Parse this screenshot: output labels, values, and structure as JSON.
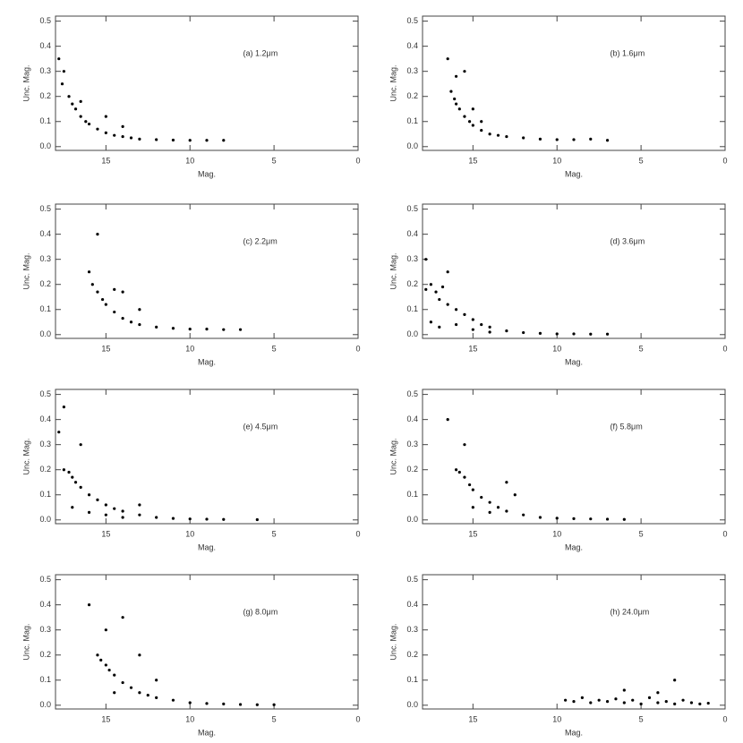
{
  "chart_data": [
    {
      "type": "scatter",
      "annotation": "(a) 1.2μm",
      "xlabel": "Mag.",
      "ylabel": "Unc. Mag.",
      "color": "#000000",
      "x": [
        17.5,
        17.2,
        17,
        16.8,
        16.5,
        16.2,
        16,
        15.5,
        15,
        14.5,
        14,
        13.5,
        13,
        12,
        11,
        10,
        9,
        8,
        17.8,
        17.6,
        16.5,
        15,
        14
      ],
      "y": [
        0.3,
        0.2,
        0.17,
        0.15,
        0.12,
        0.1,
        0.09,
        0.07,
        0.055,
        0.045,
        0.04,
        0.035,
        0.03,
        0.028,
        0.026,
        0.025,
        0.025,
        0.025,
        0.35,
        0.25,
        0.18,
        0.12,
        0.08
      ],
      "xlim": [
        18,
        0
      ],
      "ylim": [
        -0.015,
        0.52
      ],
      "xticks": [
        15,
        10,
        5,
        0
      ],
      "yticks": [
        {
          "value": 0,
          "label": "0.0"
        },
        0.1,
        0.2,
        0.3,
        0.4,
        0.5
      ]
    },
    {
      "type": "scatter",
      "annotation": "(b) 1.6μm",
      "xlabel": "Mag.",
      "ylabel": "Unc. Mag.",
      "color": "#000000",
      "x": [
        16.3,
        16.1,
        16,
        15.8,
        15.5,
        15.2,
        15,
        14.5,
        14,
        13.5,
        13,
        12,
        11,
        10,
        9,
        8,
        7,
        16.5,
        16,
        15,
        14.5,
        15.5
      ],
      "y": [
        0.22,
        0.19,
        0.17,
        0.15,
        0.12,
        0.1,
        0.085,
        0.065,
        0.05,
        0.045,
        0.04,
        0.035,
        0.03,
        0.028,
        0.028,
        0.03,
        0.025,
        0.35,
        0.28,
        0.15,
        0.1,
        0.3
      ],
      "xlim": [
        18,
        0
      ],
      "ylim": [
        -0.015,
        0.52
      ],
      "xticks": [
        15,
        10,
        5,
        0
      ],
      "yticks": [
        {
          "value": 0,
          "label": "0.0"
        },
        0.1,
        0.2,
        0.3,
        0.4,
        0.5
      ]
    },
    {
      "type": "scatter",
      "annotation": "(c) 2.2μm",
      "xlabel": "Mag.",
      "ylabel": "Unc. Mag.",
      "color": "#000000",
      "x": [
        16,
        15.8,
        15.5,
        15.2,
        15,
        14.5,
        14,
        13.5,
        13,
        12,
        11,
        10,
        9,
        8,
        7,
        15.5,
        14,
        13,
        14.5
      ],
      "y": [
        0.25,
        0.2,
        0.17,
        0.14,
        0.12,
        0.09,
        0.065,
        0.05,
        0.04,
        0.03,
        0.025,
        0.022,
        0.022,
        0.02,
        0.02,
        0.4,
        0.17,
        0.1,
        0.18
      ],
      "xlim": [
        18,
        0
      ],
      "ylim": [
        -0.015,
        0.52
      ],
      "xticks": [
        15,
        10,
        5,
        0
      ],
      "yticks": [
        {
          "value": 0,
          "label": "0.0"
        },
        0.1,
        0.2,
        0.3,
        0.4,
        0.5
      ]
    },
    {
      "type": "scatter",
      "annotation": "(d) 3.6μm",
      "xlabel": "Mag.",
      "ylabel": "Unc. Mag.",
      "color": "#000000",
      "x": [
        17.8,
        17.5,
        17.2,
        17,
        16.8,
        16.5,
        16,
        15.5,
        15,
        14.5,
        14,
        13,
        12,
        11,
        10,
        9,
        8,
        7,
        17.5,
        17,
        16,
        15,
        14,
        17.8,
        16.5
      ],
      "y": [
        0.18,
        0.2,
        0.17,
        0.14,
        0.19,
        0.12,
        0.1,
        0.08,
        0.06,
        0.04,
        0.03,
        0.015,
        0.008,
        0.005,
        0.003,
        0.003,
        0.002,
        0.002,
        0.05,
        0.03,
        0.04,
        0.02,
        0.01,
        0.3,
        0.25
      ],
      "xlim": [
        18,
        0
      ],
      "ylim": [
        -0.015,
        0.52
      ],
      "xticks": [
        15,
        10,
        5,
        0
      ],
      "yticks": [
        {
          "value": 0,
          "label": "0.0"
        },
        0.1,
        0.2,
        0.3,
        0.4,
        0.5
      ]
    },
    {
      "type": "scatter",
      "annotation": "(e) 4.5μm",
      "xlabel": "Mag.",
      "ylabel": "Unc. Mag.",
      "color": "#000000",
      "x": [
        17.5,
        17.2,
        17,
        16.8,
        16.5,
        16,
        15.5,
        15,
        14.5,
        14,
        13,
        12,
        11,
        10,
        9,
        8,
        6,
        17.8,
        17,
        16,
        15,
        14,
        13,
        17.5,
        16.5
      ],
      "y": [
        0.2,
        0.19,
        0.17,
        0.15,
        0.13,
        0.1,
        0.08,
        0.06,
        0.045,
        0.035,
        0.02,
        0.01,
        0.006,
        0.004,
        0.003,
        0.002,
        0.001,
        0.35,
        0.05,
        0.03,
        0.02,
        0.01,
        0.06,
        0.45,
        0.3
      ],
      "xlim": [
        18,
        0
      ],
      "ylim": [
        -0.015,
        0.52
      ],
      "xticks": [
        15,
        10,
        5,
        0
      ],
      "yticks": [
        {
          "value": 0,
          "label": "0.0"
        },
        0.1,
        0.2,
        0.3,
        0.4,
        0.5
      ]
    },
    {
      "type": "scatter",
      "annotation": "(f) 5.8μm",
      "xlabel": "Mag.",
      "ylabel": "Unc. Mag.",
      "color": "#000000",
      "x": [
        16,
        15.8,
        15.5,
        15.2,
        15,
        14.5,
        14,
        13.5,
        13,
        12,
        11,
        10,
        9,
        8,
        7,
        6,
        16.5,
        15,
        14,
        13,
        12.5,
        15.5
      ],
      "y": [
        0.2,
        0.19,
        0.17,
        0.14,
        0.12,
        0.09,
        0.07,
        0.05,
        0.035,
        0.02,
        0.01,
        0.007,
        0.005,
        0.004,
        0.003,
        0.002,
        0.4,
        0.05,
        0.03,
        0.15,
        0.1,
        0.3
      ],
      "xlim": [
        18,
        0
      ],
      "ylim": [
        -0.015,
        0.52
      ],
      "xticks": [
        15,
        10,
        5,
        0
      ],
      "yticks": [
        {
          "value": 0,
          "label": "0.0"
        },
        0.1,
        0.2,
        0.3,
        0.4,
        0.5
      ]
    },
    {
      "type": "scatter",
      "annotation": "(g) 8.0μm",
      "xlabel": "Mag.",
      "ylabel": "Unc. Mag.",
      "color": "#000000",
      "x": [
        15.5,
        15.3,
        15,
        14.8,
        14.5,
        14,
        13.5,
        13,
        12.5,
        12,
        11,
        10,
        9,
        8,
        7,
        6,
        5,
        15,
        14,
        13,
        16,
        14.5,
        12
      ],
      "y": [
        0.2,
        0.18,
        0.16,
        0.14,
        0.12,
        0.09,
        0.07,
        0.05,
        0.04,
        0.03,
        0.02,
        0.01,
        0.007,
        0.005,
        0.003,
        0.002,
        0.002,
        0.3,
        0.35,
        0.2,
        0.4,
        0.05,
        0.1
      ],
      "xlim": [
        18,
        0
      ],
      "ylim": [
        -0.015,
        0.52
      ],
      "xticks": [
        15,
        10,
        5,
        0
      ],
      "yticks": [
        {
          "value": 0,
          "label": "0.0"
        },
        0.1,
        0.2,
        0.3,
        0.4,
        0.5
      ]
    },
    {
      "type": "scatter",
      "annotation": "(h) 24.0μm",
      "xlabel": "Mag.",
      "ylabel": "Unc. Mag.",
      "color": "#000000",
      "x": [
        9.5,
        9,
        8.5,
        8,
        7.5,
        7,
        6.5,
        6,
        5.5,
        5,
        4.5,
        4,
        3.5,
        3,
        2.5,
        2,
        1.5,
        1,
        6,
        4,
        3
      ],
      "y": [
        0.02,
        0.015,
        0.03,
        0.01,
        0.02,
        0.015,
        0.025,
        0.01,
        0.02,
        0.005,
        0.03,
        0.01,
        0.015,
        0.005,
        0.02,
        0.01,
        0.005,
        0.008,
        0.06,
        0.05,
        0.1
      ],
      "xlim": [
        18,
        0
      ],
      "ylim": [
        -0.015,
        0.52
      ],
      "xticks": [
        15,
        10,
        5,
        0
      ],
      "yticks": [
        {
          "value": 0,
          "label": "0.0"
        },
        0.1,
        0.2,
        0.3,
        0.4,
        0.5
      ]
    }
  ]
}
